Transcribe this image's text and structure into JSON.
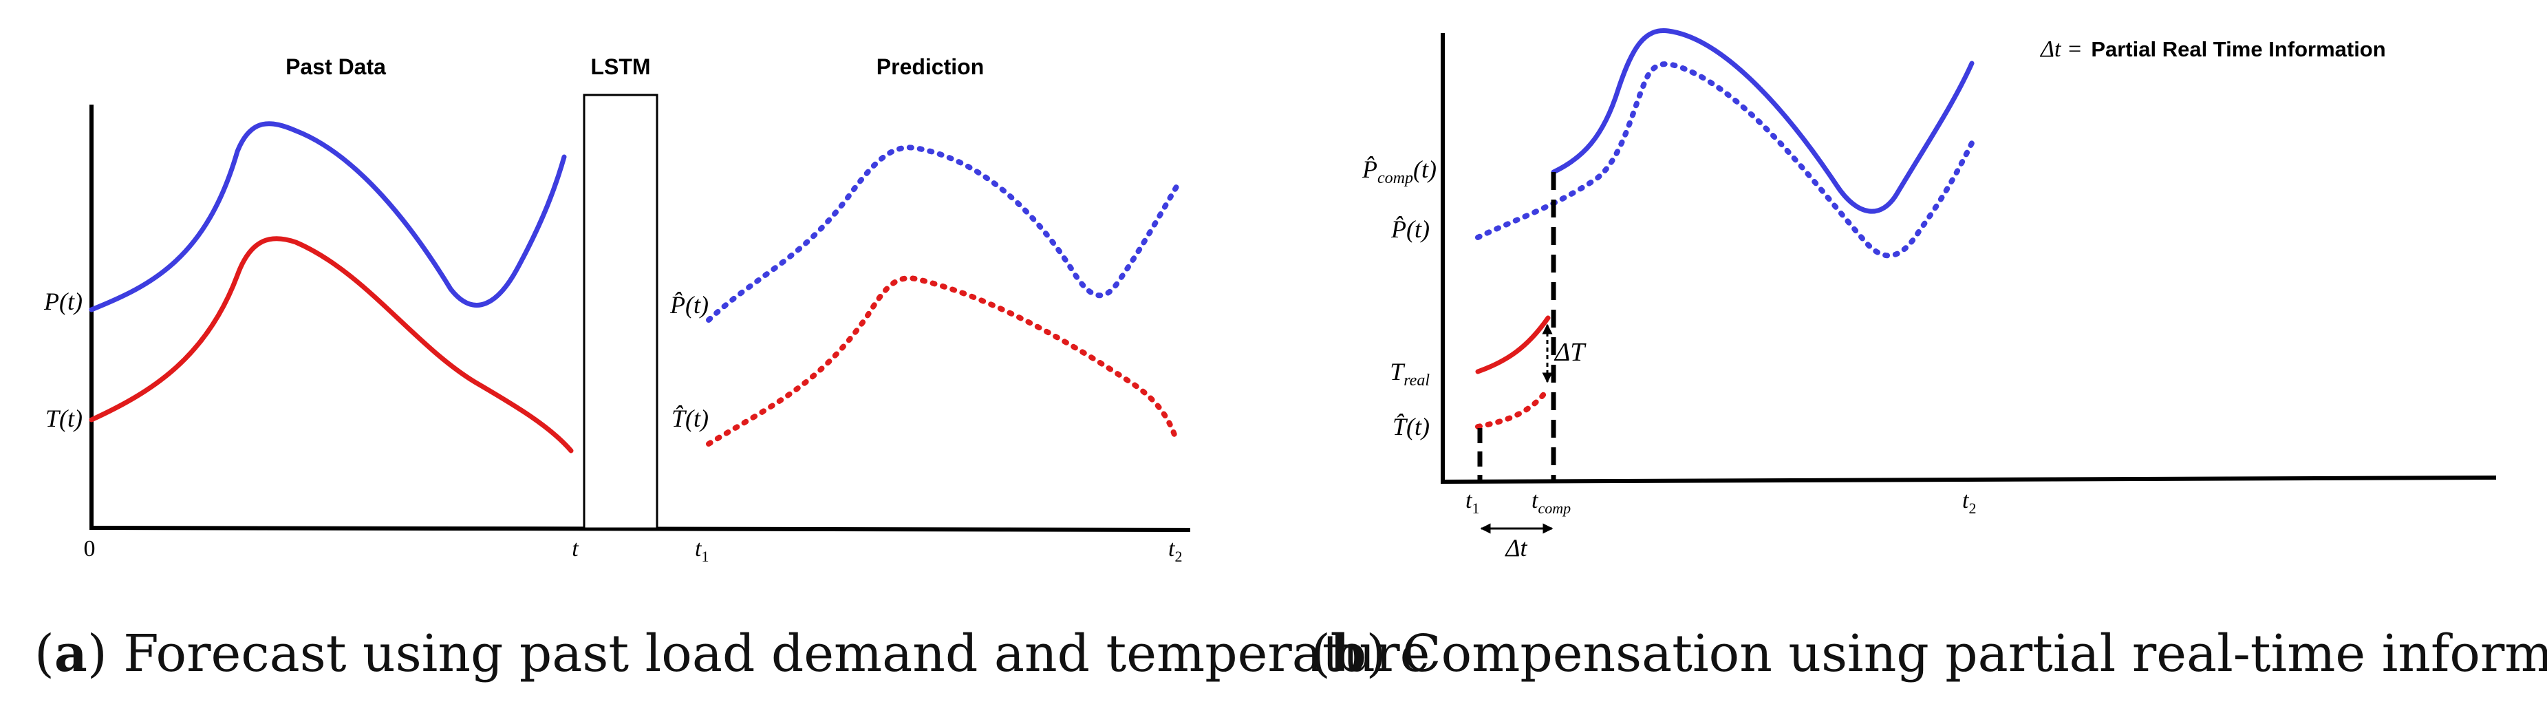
{
  "panel_a": {
    "titles": {
      "past": "Past Data",
      "lstm": "LSTM",
      "prediction": "Prediction"
    },
    "y_labels": {
      "p": "P(t)",
      "t": "T(t)",
      "p_hat": "P̂(t)",
      "t_hat": "T̂(t)"
    },
    "x_labels": {
      "zero": "0",
      "t": "t",
      "t1_base": "t",
      "t1_sub": "1",
      "t2_base": "t",
      "t2_sub": "2"
    },
    "caption": {
      "letter": "a",
      "open": "(",
      "close": ")",
      "text": " Forecast using past load demand and temperature"
    }
  },
  "panel_b": {
    "legend": {
      "symbol": "Δt =",
      "text": "Partial Real Time Information"
    },
    "y_labels": {
      "p_comp_base": "P̂",
      "p_comp_sub": "comp",
      "p_comp_tail": "(t)",
      "p_hat": "P̂(t)",
      "t_real_base": "T",
      "t_real_sub": "real",
      "t_hat": "T̂(t)"
    },
    "annotations": {
      "delta_T": "ΔT",
      "delta_t": "Δt"
    },
    "x_labels": {
      "t1_base": "t",
      "t1_sub": "1",
      "tcomp_base": "t",
      "tcomp_sub": "comp",
      "t2_base": "t",
      "t2_sub": "2"
    },
    "caption": {
      "letter": "b",
      "open": "(",
      "close": ")",
      "text": " Compensation using partial real-time information"
    }
  },
  "colors": {
    "blue": "#3d3ddf",
    "red": "#e01b1b",
    "black": "#000000"
  }
}
